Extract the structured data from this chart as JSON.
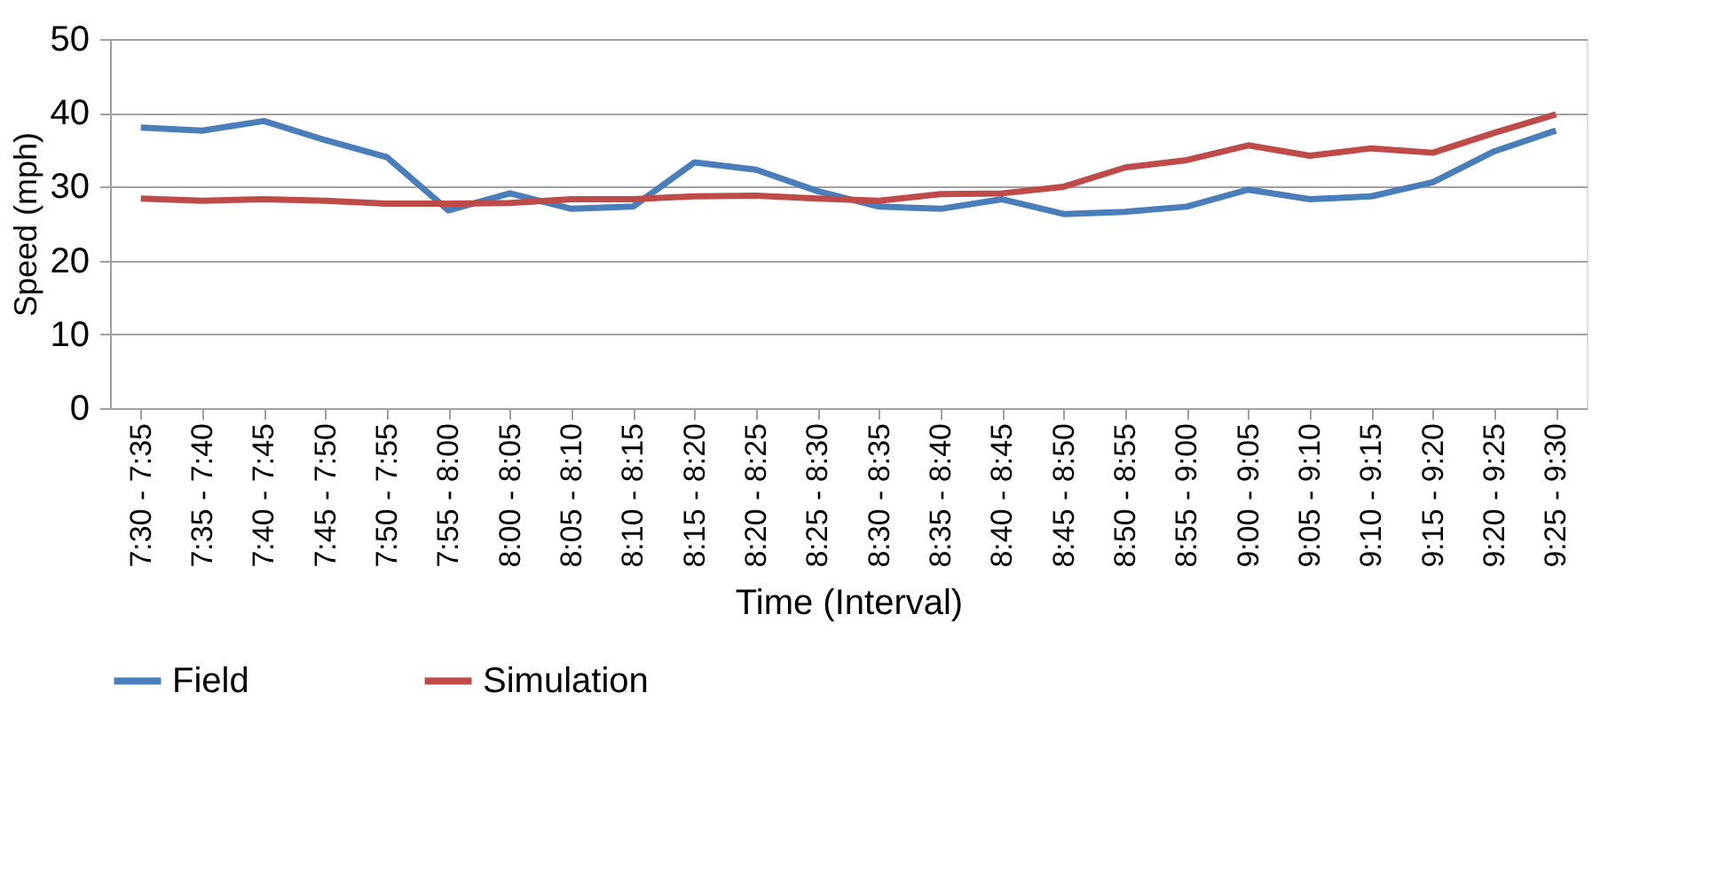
{
  "chart_data": {
    "type": "line",
    "xlabel": "Time (Interval)",
    "ylabel": "Speed (mph)",
    "categories": [
      "7:30 - 7:35",
      "7:35 - 7:40",
      "7:40 - 7:45",
      "7:45 - 7:50",
      "7:50 - 7:55",
      "7:55 - 8:00",
      "8:00 - 8:05",
      "8:05 - 8:10",
      "8:10 - 8:15",
      "8:15 - 8:20",
      "8:20 - 8:25",
      "8:25 - 8:30",
      "8:30 - 8:35",
      "8:35 - 8:40",
      "8:40 - 8:45",
      "8:45 - 8:50",
      "8:50 - 8:55",
      "8:55 - 9:00",
      "9:00 - 9:05",
      "9:05 - 9:10",
      "9:10 - 9:15",
      "9:15 - 9:20",
      "9:20 - 9:25",
      "9:25 - 9:30"
    ],
    "series": [
      {
        "name": "Field",
        "color": "#4a7ebb",
        "values": [
          38,
          37.6,
          38.9,
          36.3,
          34,
          26.8,
          29.1,
          27,
          27.3,
          33.3,
          32.3,
          29.4,
          27.3,
          27,
          28.3,
          26.3,
          26.6,
          27.3,
          29.6,
          28.3,
          28.7,
          30.6,
          34.8,
          37.6
        ]
      },
      {
        "name": "Simulation",
        "color": "#be4b48",
        "values": [
          28.4,
          28.1,
          28.3,
          28.1,
          27.7,
          27.7,
          27.8,
          28.3,
          28.3,
          28.7,
          28.8,
          28.4,
          28.1,
          29,
          29.1,
          30,
          32.6,
          33.6,
          35.6,
          34.2,
          35.2,
          34.6,
          37.3,
          39.8
        ]
      }
    ],
    "ylim": [
      0,
      50
    ],
    "yticks": [
      0,
      10,
      20,
      30,
      40,
      50
    ],
    "grid": "y",
    "legend": "bottom",
    "marker": "none",
    "line_style": "solid"
  }
}
